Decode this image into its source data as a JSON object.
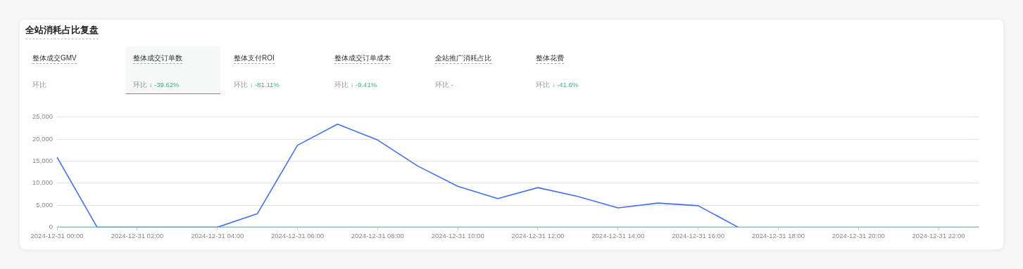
{
  "chart_data": [
    {
      "type": "other",
      "title": "全站消耗占比复盘",
      "annotations": [
        "整体成交GMV",
        "环比",
        "整体成交订单数",
        "环比 ↓ -39.62%",
        "整体支付ROI",
        "环比 ↓ -81.11%",
        "整体成交订单成本",
        "环比 ↓ -9.41%",
        "全站推广消耗占比",
        "环比 -",
        "整体花费",
        "环比 ↓ -41.6%"
      ]
    },
    {
      "type": "line",
      "categories": [
        "2024-12-31 00:00",
        null,
        "2024-12-31 02:00",
        null,
        "2024-12-31 04:00",
        null,
        "2024-12-31 06:00",
        null,
        "2024-12-31 08:00",
        null,
        "2024-12-31 10:00",
        null,
        "2024-12-31 12:00",
        null,
        "2024-12-31 14:00",
        null,
        "2024-12-31 16:00",
        null,
        "2024-12-31 18:00",
        null,
        "2024-12-31 20:00",
        null,
        "2024-12-31 22:00",
        null
      ],
      "series": [
        {
          "color": "#3bb08f",
          "values": [
            0,
            0,
            0,
            0,
            0,
            0,
            0,
            0,
            0,
            0,
            0,
            0,
            0,
            0,
            0,
            0,
            0,
            0,
            0,
            0,
            0,
            0,
            0,
            0
          ]
        },
        {
          "color": "#4070f4",
          "values": [
            15900,
            0,
            0,
            0,
            0,
            3100,
            18600,
            23400,
            19800,
            13900,
            9300,
            6500,
            9000,
            7000,
            4400,
            5500,
            4900,
            0,
            null,
            null,
            null,
            null,
            null,
            null
          ]
        }
      ],
      "ylim": [
        0,
        25000
      ],
      "yticks": [
        {
          "value": 0,
          "label": "0"
        },
        {
          "value": 5000,
          "label": "5,000"
        },
        {
          "value": 10000,
          "label": "10,000"
        },
        {
          "value": 15000,
          "label": "15,000"
        },
        {
          "value": 20000,
          "label": "20,000"
        },
        {
          "value": 25000,
          "label": "25,000"
        }
      ],
      "grid": "y",
      "legend": false,
      "marker": "none",
      "line_style": "solid"
    }
  ]
}
